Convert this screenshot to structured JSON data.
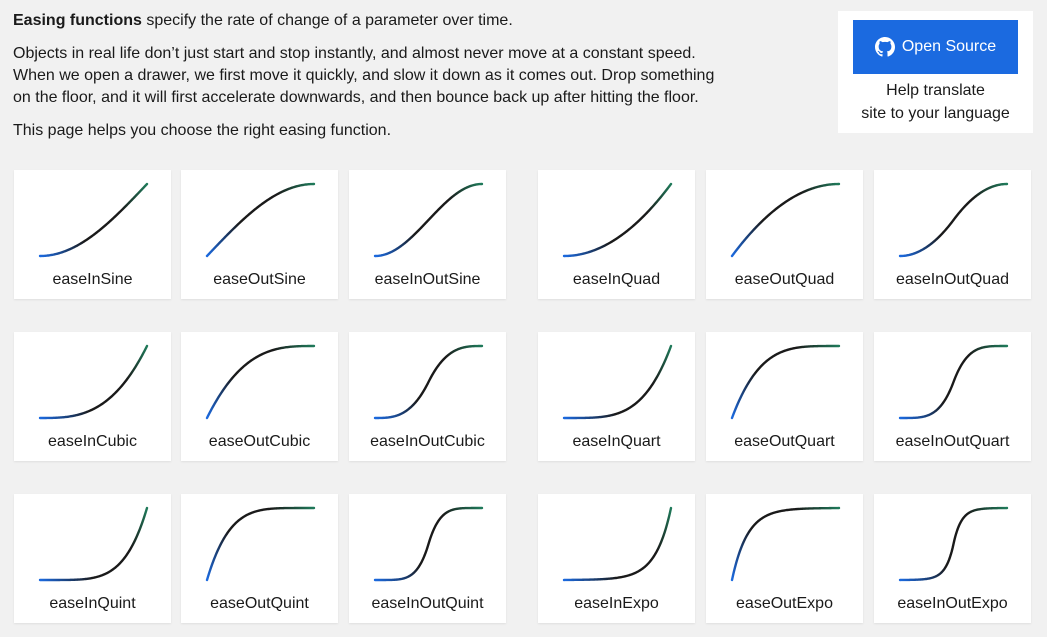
{
  "intro": {
    "p1_bold": "Easing functions",
    "p1_rest": " specify the rate of change of a parameter over time.",
    "p2_line1": "Objects in real life don’t just start and stop instantly, and almost never move at a constant speed.",
    "p2_line2": "When we open a drawer, we first move it quickly, and slow it down as it comes out. Drop something",
    "p2_line3": "on the floor, and it will first accelerate downwards, and then bounce back up after hitting the floor.",
    "p3": "This page helps you choose the right easing function."
  },
  "sidebar": {
    "button_label": "Open Source",
    "button_icon": "github-icon",
    "help_line1": "Help translate",
    "help_line2": "site to your language"
  },
  "colors": {
    "background": "#f1f1f1",
    "button": "#1b6ae0",
    "curve_start": "#1b6ae0",
    "curve_mid": "#1a1a1a",
    "curve_end": "#1f7a5a"
  },
  "easings": [
    {
      "name": "easeInSine"
    },
    {
      "name": "easeOutSine"
    },
    {
      "name": "easeInOutSine"
    },
    {
      "name": "easeInQuad"
    },
    {
      "name": "easeOutQuad"
    },
    {
      "name": "easeInOutQuad"
    },
    {
      "name": "easeInCubic"
    },
    {
      "name": "easeOutCubic"
    },
    {
      "name": "easeInOutCubic"
    },
    {
      "name": "easeInQuart"
    },
    {
      "name": "easeOutQuart"
    },
    {
      "name": "easeInOutQuart"
    },
    {
      "name": "easeInQuint"
    },
    {
      "name": "easeOutQuint"
    },
    {
      "name": "easeInOutQuint"
    },
    {
      "name": "easeInExpo"
    },
    {
      "name": "easeOutExpo"
    },
    {
      "name": "easeInOutExpo"
    }
  ]
}
